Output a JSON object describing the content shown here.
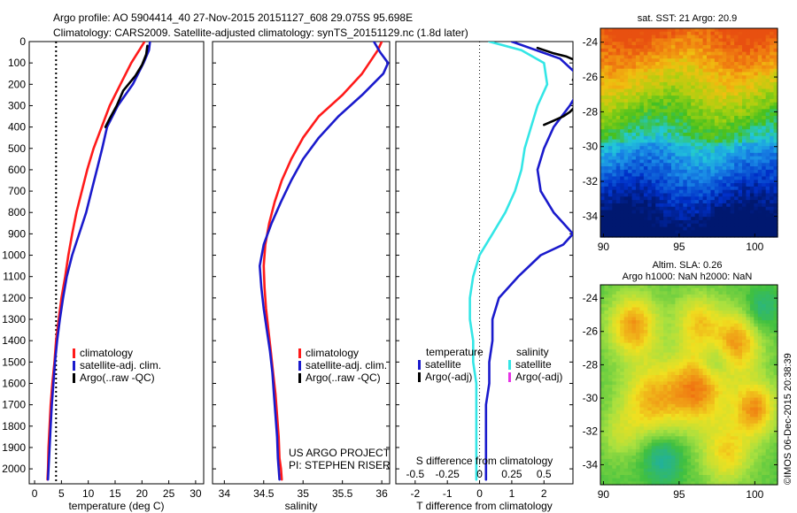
{
  "header": {
    "line1": "Argo profile: AO 5904414_40 27-Nov-2015 20151127_608 29.075S 95.698E",
    "line2": "Climatology: CARS2009. Satellite-adjusted climatology: synTS_20151129.nc (1.8d later)"
  },
  "side_label": "©IMOS 06-Dec-2015 20:38:39",
  "colors": {
    "climatology": "#ff1a1a",
    "satellite": "#1a1acc",
    "argo": "#000000",
    "s_satellite": "#33e6e6",
    "s_argo": "#e633e6"
  },
  "chart_data": [
    {
      "type": "line",
      "panel": "temperature",
      "xlabel": "temperature (deg C)",
      "ylabel": "",
      "xlim": [
        -1,
        31.5
      ],
      "ylim": [
        2070,
        0
      ],
      "xticks": [
        0,
        5,
        10,
        15,
        20,
        25,
        30
      ],
      "yticks": [
        0,
        100,
        200,
        300,
        400,
        500,
        600,
        700,
        800,
        900,
        1000,
        1100,
        1200,
        1300,
        1400,
        1500,
        1600,
        1700,
        1800,
        1900,
        2000
      ],
      "reference_x": 4,
      "legend": [
        "climatology",
        "satellite-adj. clim.",
        "Argo(..raw -QC)"
      ],
      "series": [
        {
          "name": "climatology",
          "color_key": "climatology",
          "x": [
            20.5,
            19.5,
            18.0,
            16.0,
            14.0,
            12.5,
            11.0,
            9.8,
            8.8,
            7.8,
            7.0,
            6.3,
            5.7,
            5.0,
            4.5,
            4.0,
            3.7,
            3.3,
            3.0,
            2.8,
            2.6,
            2.5,
            2.4
          ],
          "y": [
            0,
            40,
            100,
            200,
            300,
            400,
            500,
            600,
            700,
            800,
            900,
            1000,
            1100,
            1200,
            1300,
            1400,
            1500,
            1600,
            1700,
            1800,
            1900,
            2000,
            2050
          ]
        },
        {
          "name": "satellite-adj. clim.",
          "color_key": "satellite",
          "x": [
            21.5,
            21.3,
            20.3,
            18.3,
            15.5,
            13.5,
            12.6,
            11.6,
            10.6,
            9.6,
            8.3,
            7.0,
            6.0,
            5.3,
            4.7,
            4.2,
            3.8,
            3.5,
            3.2,
            3.0,
            2.8,
            2.6,
            2.5
          ],
          "y": [
            0,
            40,
            100,
            200,
            300,
            400,
            500,
            600,
            700,
            800,
            900,
            1000,
            1100,
            1200,
            1300,
            1400,
            1500,
            1600,
            1700,
            1800,
            1900,
            2000,
            2050
          ]
        },
        {
          "name": "Argo(..raw -QC)",
          "color_key": "argo",
          "x": [
            21.0,
            20.8,
            20.0,
            18.8,
            16.5,
            15.3,
            14.0,
            13.2
          ],
          "y": [
            20,
            60,
            110,
            160,
            230,
            300,
            360,
            400
          ]
        }
      ]
    },
    {
      "type": "line",
      "panel": "salinity",
      "xlabel": "salinity",
      "ylabel": "",
      "xlim": [
        33.85,
        36.1
      ],
      "ylim": [
        2070,
        0
      ],
      "xticks": [
        34,
        34.5,
        35,
        35.5,
        36
      ],
      "legend": [
        "climatology",
        "satellite-adj. clim.",
        "Argo(..raw -QC)"
      ],
      "annotation": [
        "US ARGO PROJECT",
        "PI: STEPHEN RISER"
      ],
      "series": [
        {
          "name": "climatology",
          "color_key": "climatology",
          "x": [
            36.0,
            35.95,
            35.75,
            35.5,
            35.2,
            35.0,
            34.85,
            34.73,
            34.64,
            34.57,
            34.52,
            34.5,
            34.51,
            34.53,
            34.56,
            34.59,
            34.62,
            34.65,
            34.67,
            34.69,
            34.7,
            34.72,
            34.73
          ],
          "y": [
            0,
            40,
            150,
            250,
            350,
            450,
            550,
            650,
            750,
            850,
            950,
            1050,
            1150,
            1250,
            1350,
            1450,
            1550,
            1650,
            1750,
            1850,
            1950,
            2000,
            2050
          ]
        },
        {
          "name": "satellite-adj. clim.",
          "color_key": "satellite",
          "x": [
            35.9,
            35.98,
            36.08,
            36.02,
            35.75,
            35.45,
            35.2,
            35.0,
            34.85,
            34.72,
            34.6,
            34.5,
            34.45,
            34.47,
            34.5,
            34.54,
            34.58,
            34.61,
            34.63,
            34.65,
            34.67,
            34.68,
            34.7
          ],
          "y": [
            0,
            50,
            100,
            150,
            250,
            350,
            450,
            550,
            650,
            750,
            850,
            950,
            1050,
            1150,
            1250,
            1350,
            1450,
            1550,
            1650,
            1750,
            1850,
            1950,
            2050
          ]
        }
      ]
    },
    {
      "type": "line",
      "panel": "differences",
      "xlabel": "T difference from climatology",
      "xlabel_top": "S difference from climatology",
      "xlim": [
        -2.6,
        2.9
      ],
      "ylim": [
        2070,
        0
      ],
      "xticks": [
        -2,
        -1,
        0,
        1,
        2
      ],
      "xticks_top": [
        "-0.5",
        "-0.25",
        "0",
        "0.25",
        "0.5"
      ],
      "xticks_top_values": [
        -2,
        -1,
        0,
        1,
        2
      ],
      "reference_x": 0,
      "legend_left_header": "temperature",
      "legend_right_header": "salinity",
      "legend_left": [
        "satellite",
        "Argo(-adj)"
      ],
      "legend_right": [
        "satellite",
        "Argo(-adj)"
      ],
      "series": [
        {
          "name": "satellite",
          "group": "temperature",
          "color_key": "satellite",
          "x": [
            1.0,
            2.5,
            3.0,
            3.2,
            2.8,
            2.3,
            2.0,
            1.8,
            1.9,
            2.3,
            2.6,
            2.9,
            2.6,
            1.9,
            1.2,
            0.6,
            0.4,
            0.4,
            0.3,
            0.3,
            0.2,
            0.2,
            0.2
          ],
          "y": [
            0,
            80,
            150,
            200,
            300,
            400,
            500,
            600,
            700,
            800,
            850,
            900,
            950,
            1000,
            1100,
            1200,
            1300,
            1400,
            1500,
            1600,
            1700,
            1900,
            2050
          ]
        },
        {
          "name": "satellite",
          "group": "salinity",
          "color_key": "s_satellite",
          "x": [
            0.3,
            1.3,
            2.0,
            2.1,
            1.8,
            1.6,
            1.4,
            1.3,
            1.1,
            0.8,
            0.4,
            0.0,
            -0.2,
            -0.3,
            -0.3,
            -0.2,
            -0.2,
            -0.1,
            -0.1,
            -0.1,
            -0.1,
            -0.1
          ],
          "y": [
            0,
            40,
            100,
            200,
            300,
            400,
            500,
            600,
            700,
            800,
            900,
            1000,
            1100,
            1200,
            1300,
            1400,
            1500,
            1600,
            1700,
            1800,
            1900,
            2050
          ]
        },
        {
          "name": "Argo(-adj)",
          "group": "temperature",
          "color_key": "argo",
          "x": [
            1.8,
            2.3,
            2.7,
            3.0,
            3.3,
            3.0,
            2.9
          ],
          "y": [
            30,
            55,
            70,
            90,
            120,
            150,
            180
          ]
        },
        {
          "name": "Argo(-adj)",
          "group": "temperature",
          "color_key": "argo",
          "x": [
            3.2,
            3.0,
            3.0,
            2.8,
            2.6,
            2.3,
            2.0
          ],
          "y": [
            240,
            270,
            300,
            330,
            350,
            370,
            390
          ]
        },
        {
          "name": "Argo(-adj)",
          "group": "salinity",
          "color_key": "s_argo",
          "x": [],
          "y": []
        }
      ]
    },
    {
      "type": "heatmap",
      "panel": "sst_map",
      "title": "sat. SST: 21 Argo: 20.9",
      "xlim": [
        89.8,
        101.5
      ],
      "ylim": [
        -35.2,
        -23.2
      ],
      "xticks": [
        90,
        95,
        100
      ],
      "yticks": [
        -24,
        -26,
        -28,
        -30,
        -32,
        -34
      ],
      "values_description": "SST bands warmest north (orange ~22) to coldest south (dark blue ~17)"
    },
    {
      "type": "heatmap",
      "panel": "sla_map",
      "title_line1": "Altim. SLA: 0.26",
      "title_line2": "Argo h1000: NaN h2000: NaN",
      "xlim": [
        89.8,
        101.5
      ],
      "ylim": [
        -35.2,
        -23.2
      ],
      "xticks": [
        90,
        95,
        100
      ],
      "yticks": [
        -24,
        -26,
        -28,
        -30,
        -32,
        -34
      ]
    }
  ]
}
